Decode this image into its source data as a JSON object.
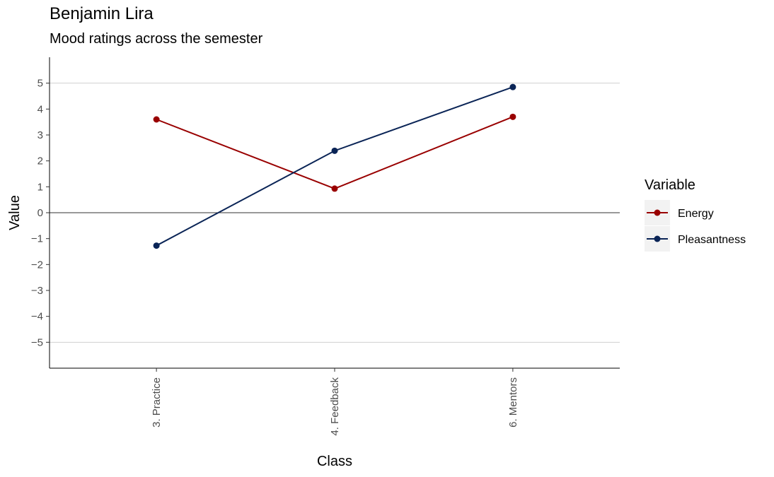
{
  "chart_data": {
    "type": "line",
    "title": "Benjamin Lira",
    "subtitle": "Mood ratings across the semester",
    "xlabel": "Class",
    "ylabel": "Value",
    "categories": [
      "3. Practice",
      "4. Feedback",
      "6. Mentors"
    ],
    "ylim": [
      -6,
      6
    ],
    "yticks": [
      -5,
      -4,
      -3,
      -2,
      -1,
      0,
      1,
      2,
      3,
      4,
      5
    ],
    "ytick_labels": [
      "−5",
      "−4",
      "−3",
      "−2",
      "−1",
      "0",
      "1",
      "2",
      "3",
      "4",
      "5"
    ],
    "gridlines_at": [
      -5,
      5
    ],
    "zero_line": true,
    "legend": {
      "title": "Variable",
      "position": "right"
    },
    "series": [
      {
        "name": "Energy",
        "color": "#990000",
        "values": [
          3.6,
          0.93,
          3.7
        ]
      },
      {
        "name": "Pleasantness",
        "color": "#0a2456",
        "values": [
          -1.27,
          2.39,
          4.85
        ]
      }
    ]
  }
}
